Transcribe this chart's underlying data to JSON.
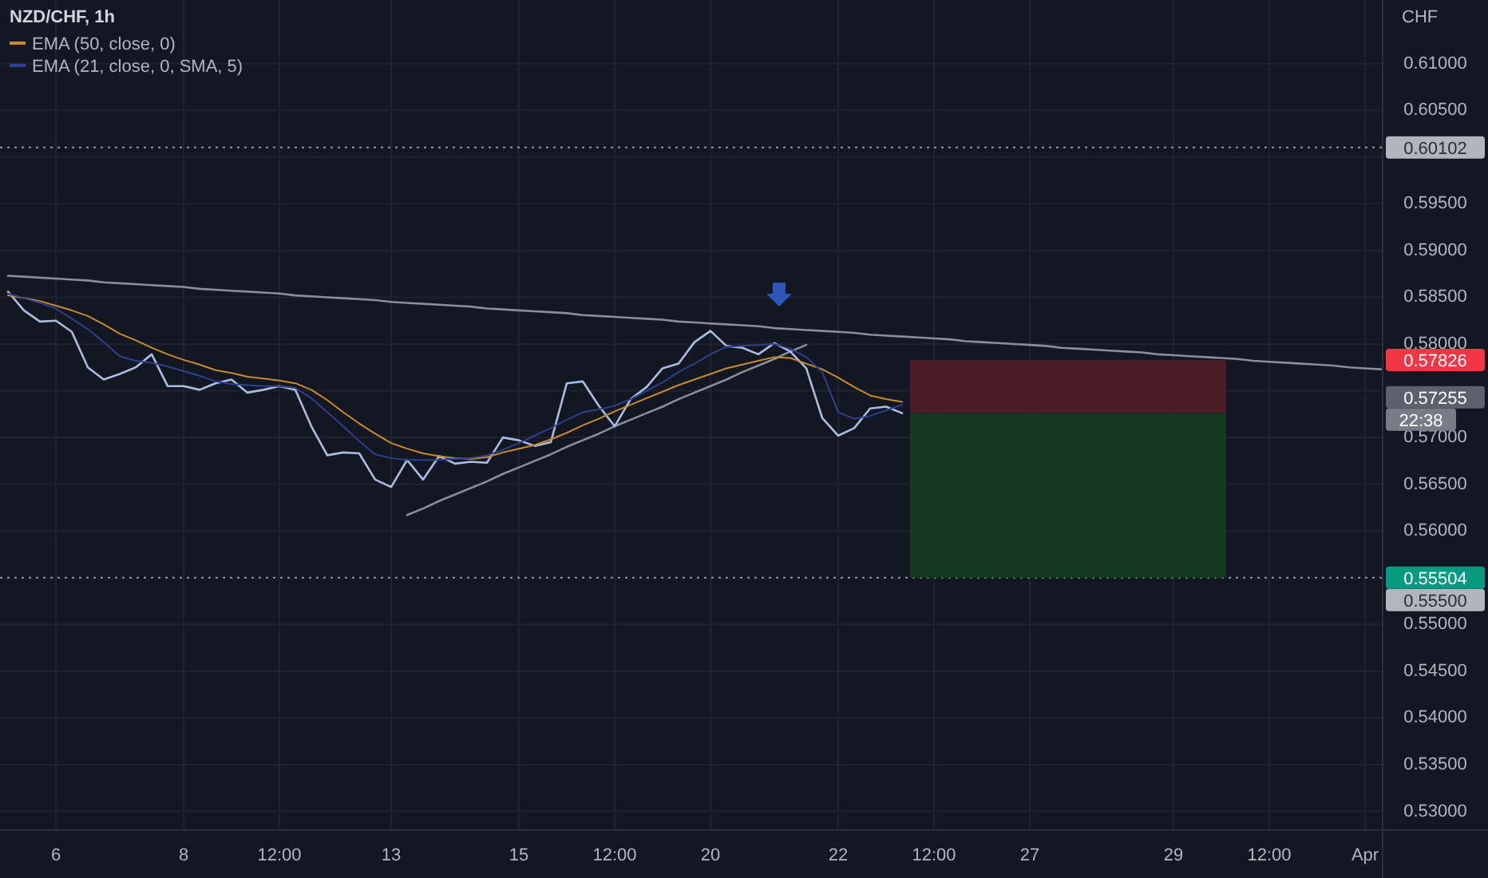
{
  "chart_data": {
    "type": "line",
    "title": "NZD/CHF, 1h",
    "ylabel": "CHF",
    "legend": "top left",
    "grid": true,
    "categories": [
      null,
      null,
      null,
      "6",
      null,
      null,
      null,
      null,
      null,
      null,
      null,
      "8",
      null,
      null,
      null,
      null,
      null,
      "12:00",
      null,
      null,
      null,
      null,
      null,
      null,
      "13",
      null,
      null,
      null,
      null,
      null,
      null,
      null,
      "15",
      null,
      null,
      null,
      null,
      null,
      "12:00",
      null,
      null,
      null,
      null,
      null,
      "20",
      null,
      null,
      null,
      null,
      null,
      null,
      null,
      "22",
      null,
      null,
      null,
      null,
      null,
      "12:00",
      null,
      null,
      null,
      null,
      null,
      "27",
      null,
      null,
      null,
      null,
      null,
      null,
      null,
      null,
      "29",
      null,
      null,
      null,
      null,
      null,
      "12:00",
      null,
      null,
      null,
      null,
      null,
      "Apr",
      null
    ],
    "ylim": [
      0.528,
      0.6168
    ],
    "yticks": [
      {
        "value": 0.53,
        "label": "0.53000"
      },
      {
        "value": 0.535,
        "label": "0.53500"
      },
      {
        "value": 0.54,
        "label": "0.54000"
      },
      {
        "value": 0.545,
        "label": "0.54500"
      },
      {
        "value": 0.55,
        "label": "0.55000"
      },
      {
        "value": 0.56,
        "label": "0.56000"
      },
      {
        "value": 0.565,
        "label": "0.56500"
      },
      {
        "value": 0.57,
        "label": "0.57000"
      },
      {
        "value": 0.575,
        "label": null
      },
      {
        "value": 0.58,
        "label": "0.58000"
      },
      {
        "value": 0.585,
        "label": "0.58500"
      },
      {
        "value": 0.59,
        "label": "0.59000"
      },
      {
        "value": 0.595,
        "label": "0.59500"
      },
      {
        "value": 0.6,
        "label": null
      },
      {
        "value": 0.605,
        "label": "0.60500"
      },
      {
        "value": 0.61,
        "label": "0.61000"
      }
    ],
    "ref_lines": [
      {
        "axis": "y",
        "value": 0.60102,
        "label": "0.60102",
        "color": "#9598a1",
        "line_style": "dotted"
      },
      {
        "axis": "y",
        "value": 0.555,
        "label": "0.55500",
        "color": "#9598a1",
        "line_style": "dotted"
      }
    ],
    "annotations": [
      "0.57826",
      "0.57255",
      "22:38",
      "0.55504"
    ],
    "bands": [
      {
        "axis": "y",
        "from": 0.5726,
        "to": 0.5783,
        "color": "#4a1c25"
      },
      {
        "axis": "y",
        "from": 0.555,
        "to": 0.5726,
        "color": "#13391f"
      }
    ],
    "series": [
      {
        "type": "line",
        "color": "#8a8e99",
        "values": [
          0.5873,
          0.5872,
          0.5871,
          0.587,
          0.5869,
          0.5868,
          0.5866,
          0.5865,
          0.5864,
          0.5863,
          0.5862,
          0.5861,
          0.5859,
          0.5858,
          0.5857,
          0.5856,
          0.5855,
          0.5854,
          0.5852,
          0.5851,
          0.585,
          0.5849,
          0.5848,
          0.5847,
          0.5845,
          0.5844,
          0.5843,
          0.5842,
          0.5841,
          0.584,
          0.5838,
          0.5837,
          0.5836,
          0.5835,
          0.5834,
          0.5833,
          0.5831,
          0.583,
          0.5829,
          0.5828,
          0.5827,
          0.5826,
          0.5824,
          0.5823,
          0.5822,
          0.5821,
          0.582,
          0.5819,
          0.5817,
          0.5816,
          0.5815,
          0.5814,
          0.5813,
          0.5812,
          0.581,
          0.5809,
          0.5808,
          0.5807,
          0.5806,
          0.5805,
          0.5803,
          0.5802,
          0.5801,
          0.58,
          0.5799,
          0.5798,
          0.5796,
          0.5795,
          0.5794,
          0.5793,
          0.5792,
          0.5791,
          0.5789,
          0.5788,
          0.5787,
          0.5786,
          0.5785,
          0.5784,
          0.5782,
          0.5781,
          0.578,
          0.5779,
          0.5778,
          0.5777,
          0.5775,
          0.5774,
          0.5773
        ]
      },
      {
        "type": "line",
        "color": "#8a8e99",
        "values": [
          null,
          null,
          null,
          null,
          null,
          null,
          null,
          null,
          null,
          null,
          null,
          null,
          null,
          null,
          null,
          null,
          null,
          null,
          null,
          null,
          null,
          null,
          null,
          null,
          null,
          0.5617,
          0.5624,
          0.5632,
          0.5639,
          0.5646,
          0.5653,
          0.5661,
          0.5668,
          0.5675,
          0.5682,
          0.569,
          0.5697,
          0.5704,
          0.5712,
          0.5719,
          0.5726,
          0.5733,
          0.5741,
          0.5748,
          0.5755,
          0.5762,
          0.577,
          0.5777,
          0.5784,
          0.5792,
          0.5799,
          null,
          null,
          null,
          null,
          null,
          null,
          null,
          null,
          null,
          null,
          null,
          null,
          null,
          null,
          null,
          null,
          null,
          null,
          null,
          null,
          null,
          null,
          null,
          null,
          null,
          null,
          null,
          null,
          null,
          null,
          null,
          null,
          null,
          null,
          null,
          null
        ]
      },
      {
        "color": "#a9bde0",
        "values": [
          0.5856,
          0.5836,
          0.5824,
          0.5825,
          0.5813,
          0.5775,
          0.5762,
          0.5768,
          0.5775,
          0.5789,
          0.5755,
          0.5755,
          0.5751,
          0.5758,
          0.5762,
          0.5748,
          0.5751,
          0.5755,
          0.5751,
          0.5712,
          0.5681,
          0.5684,
          0.5683,
          0.5655,
          0.5647,
          0.5676,
          0.5655,
          0.568,
          0.5672,
          0.5674,
          0.5673,
          0.57,
          0.5697,
          0.5691,
          0.5695,
          0.5758,
          0.576,
          0.5734,
          0.5712,
          0.5741,
          0.5754,
          0.5774,
          0.5779,
          0.5802,
          0.5814,
          0.5798,
          0.5796,
          0.5789,
          0.5801,
          0.5792,
          0.5774,
          0.5721,
          0.5702,
          0.571,
          0.5731,
          0.5733,
          0.5726,
          null,
          null,
          null,
          null,
          null,
          null,
          null,
          null,
          null,
          null,
          null,
          null,
          null,
          null,
          null,
          null,
          null,
          null,
          null,
          null,
          null,
          null,
          null,
          null,
          null,
          null,
          null,
          null,
          null,
          null
        ]
      },
      {
        "name": "EMA (50, close, 0)",
        "color": "#c98a2e",
        "values": [
          0.5852,
          0.5849,
          0.5846,
          0.5841,
          0.5836,
          0.583,
          0.5821,
          0.5811,
          0.5804,
          0.5796,
          0.5789,
          0.5783,
          0.5778,
          0.5772,
          0.5769,
          0.5765,
          0.5763,
          0.5761,
          0.5758,
          0.5751,
          0.574,
          0.5727,
          0.5715,
          0.5704,
          0.5694,
          0.5688,
          0.5683,
          0.568,
          0.5678,
          0.5677,
          0.5679,
          0.5684,
          0.5688,
          0.5692,
          0.5698,
          0.5705,
          0.5713,
          0.572,
          0.5728,
          0.5735,
          0.5742,
          0.5749,
          0.5756,
          0.5762,
          0.5768,
          0.5774,
          0.5778,
          0.5782,
          0.5786,
          0.5785,
          0.5779,
          0.5773,
          0.5764,
          0.5754,
          0.5745,
          0.5741,
          0.5738,
          null,
          null,
          null,
          null,
          null,
          null,
          null,
          null,
          null,
          null,
          null,
          null,
          null,
          null,
          null,
          null,
          null,
          null,
          null,
          null,
          null,
          null,
          null,
          null,
          null,
          null,
          null,
          null,
          null,
          null
        ]
      },
      {
        "name": "EMA (21, close, 0, SMA, 5)",
        "color": "#2f3f8f",
        "values": [
          0.5854,
          0.5849,
          0.5844,
          0.5838,
          0.5827,
          0.5816,
          0.5802,
          0.5787,
          0.5782,
          0.578,
          0.5776,
          0.5771,
          0.5766,
          0.576,
          0.5757,
          0.5756,
          0.5755,
          0.5755,
          0.5753,
          0.5742,
          0.5727,
          0.5712,
          0.5696,
          0.5682,
          0.5678,
          0.5676,
          0.5676,
          0.5676,
          0.5677,
          0.5678,
          0.5681,
          0.5687,
          0.5694,
          0.5702,
          0.571,
          0.5719,
          0.5727,
          0.573,
          0.5734,
          0.5741,
          0.575,
          0.5759,
          0.577,
          0.5779,
          0.5789,
          0.5797,
          0.5798,
          0.5799,
          0.58,
          0.5795,
          0.5786,
          0.577,
          0.5727,
          0.572,
          0.5723,
          0.5729,
          0.5735,
          null,
          null,
          null,
          null,
          null,
          null,
          null,
          null,
          null,
          null,
          null,
          null,
          null,
          null,
          null,
          null,
          null,
          null,
          null,
          null,
          null,
          null,
          null,
          null,
          null,
          null,
          null,
          null,
          null,
          null
        ]
      }
    ]
  }
}
